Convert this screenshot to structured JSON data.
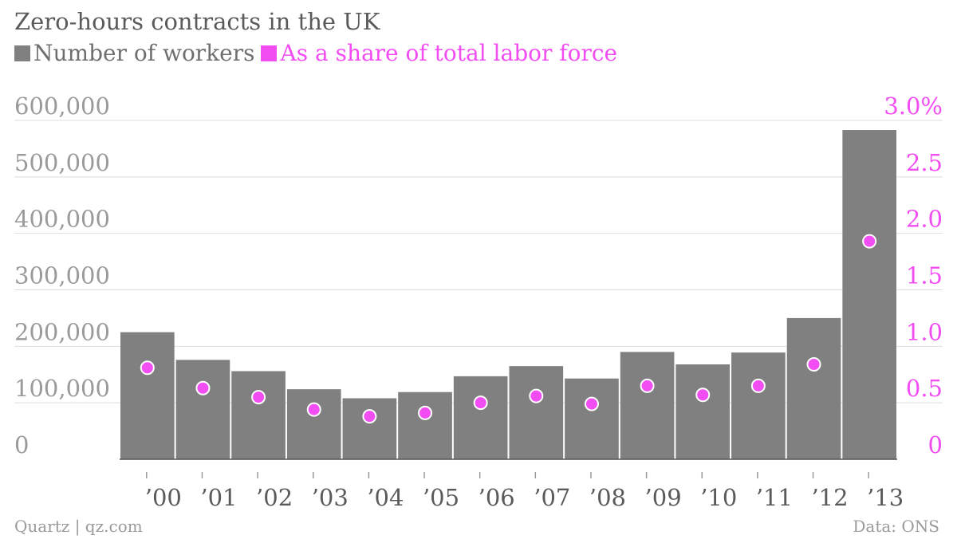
{
  "title": "Zero-hours contracts in the UK",
  "legend": [
    {
      "label": "Number of workers",
      "color": "#808080"
    },
    {
      "label": "As a share of total labor force",
      "color": "#f24df2"
    }
  ],
  "footer": {
    "source_left": "Quartz | qz.com",
    "source_right": "Data: ONS"
  },
  "chart_data": {
    "type": "bar",
    "title": "Zero-hours contracts in the UK",
    "categories": [
      "’00",
      "’01",
      "’02",
      "’03",
      "’04",
      "’05",
      "’06",
      "’07",
      "’08",
      "’09",
      "’10",
      "’11",
      "’12",
      "’13"
    ],
    "series": [
      {
        "name": "Number of workers",
        "type": "bar",
        "axis": "left",
        "color": "#808080",
        "values": [
          225000,
          176000,
          156000,
          124000,
          108000,
          119000,
          147000,
          165000,
          143000,
          190000,
          168000,
          189000,
          250000,
          583000
        ]
      },
      {
        "name": "As a share of total labor force",
        "type": "scatter",
        "axis": "right",
        "color": "#f24df2",
        "values": [
          0.81,
          0.63,
          0.55,
          0.44,
          0.38,
          0.41,
          0.5,
          0.56,
          0.49,
          0.65,
          0.57,
          0.65,
          0.84,
          1.93
        ]
      }
    ],
    "y_left": {
      "ylim": [
        0,
        600000
      ],
      "ticks": [
        "0",
        "100,000",
        "200,000",
        "300,000",
        "400,000",
        "500,000",
        "600,000"
      ]
    },
    "y_right": {
      "ylim": [
        0,
        3.0
      ],
      "ticks": [
        "0",
        "0.5",
        "1.0",
        "1.5",
        "2.0",
        "2.5",
        "3.0%"
      ]
    },
    "grid": true
  }
}
